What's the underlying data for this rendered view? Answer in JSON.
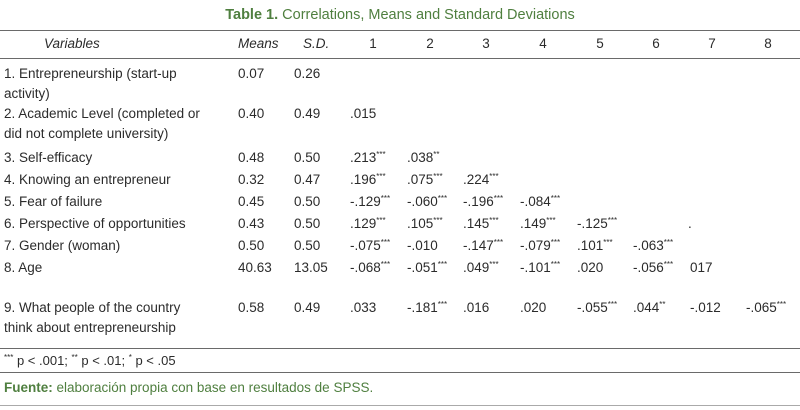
{
  "title": {
    "bold": "Table 1.",
    "rest": " Correlations, Means and Standard Deviations"
  },
  "headers": {
    "variables": "Variables",
    "means": "Means",
    "sd": "S.D.",
    "cols": [
      "1",
      "2",
      "3",
      "4",
      "5",
      "6",
      "7",
      "8"
    ]
  },
  "rows": [
    {
      "label1": "1. Entrepreneurship (start-up",
      "label2": "activity)",
      "mean": "0.07",
      "sd": "0.26",
      "vals": []
    },
    {
      "label1": "2. Academic Level (completed or",
      "label2": "did not complete university)",
      "mean": "0.40",
      "sd": "0.49",
      "vals": [
        ".015"
      ]
    },
    {
      "label1": "3.  Self-efficacy",
      "mean": "0.48",
      "sd": "0.50",
      "vals": [
        ".213***",
        ".038**"
      ]
    },
    {
      "label1": "4.  Knowing an entrepreneur",
      "mean": "0.32",
      "sd": "0.47",
      "vals": [
        ".196***",
        ".075***",
        ".224***"
      ]
    },
    {
      "label1": "5. Fear of failure",
      "mean": "0.45",
      "sd": "0.50",
      "vals": [
        "-.129***",
        "-.060***",
        "-.196***",
        "-.084***"
      ]
    },
    {
      "label1": "6. Perspective of opportunities",
      "mean": "0.43",
      "sd": "0.50",
      "vals": [
        ".129***",
        ".105***",
        ".145***",
        ".149***",
        "-.125***"
      ]
    },
    {
      "label1": "7. Gender (woman)",
      "mean": "0.50",
      "sd": "0.50",
      "vals": [
        "-.075***",
        "-.010",
        "-.147***",
        "-.079***",
        ".101***",
        "-.063***"
      ]
    },
    {
      "label1": "8. Age",
      "mean": "40.63",
      "sd": "13.05",
      "vals": [
        "-.068***",
        "-.051***",
        ".049***",
        "-.101***",
        ".020",
        "-.056***",
        "017"
      ]
    },
    {
      "label1": "9. What people of the country",
      "label2": "think about entrepreneurship",
      "mean": "0.58",
      "sd": "0.49",
      "vals": [
        ".033",
        "-.181***",
        ".016",
        ".020",
        "-.055***",
        ".044**",
        "-.012",
        "-.065***"
      ]
    }
  ],
  "stray_mark": ".",
  "footnote": "*** p < .001; ** p < .01; * p < .05",
  "source": {
    "bold": "Fuente:",
    "rest": " elaboración propia con base en resultados de SPSS."
  }
}
